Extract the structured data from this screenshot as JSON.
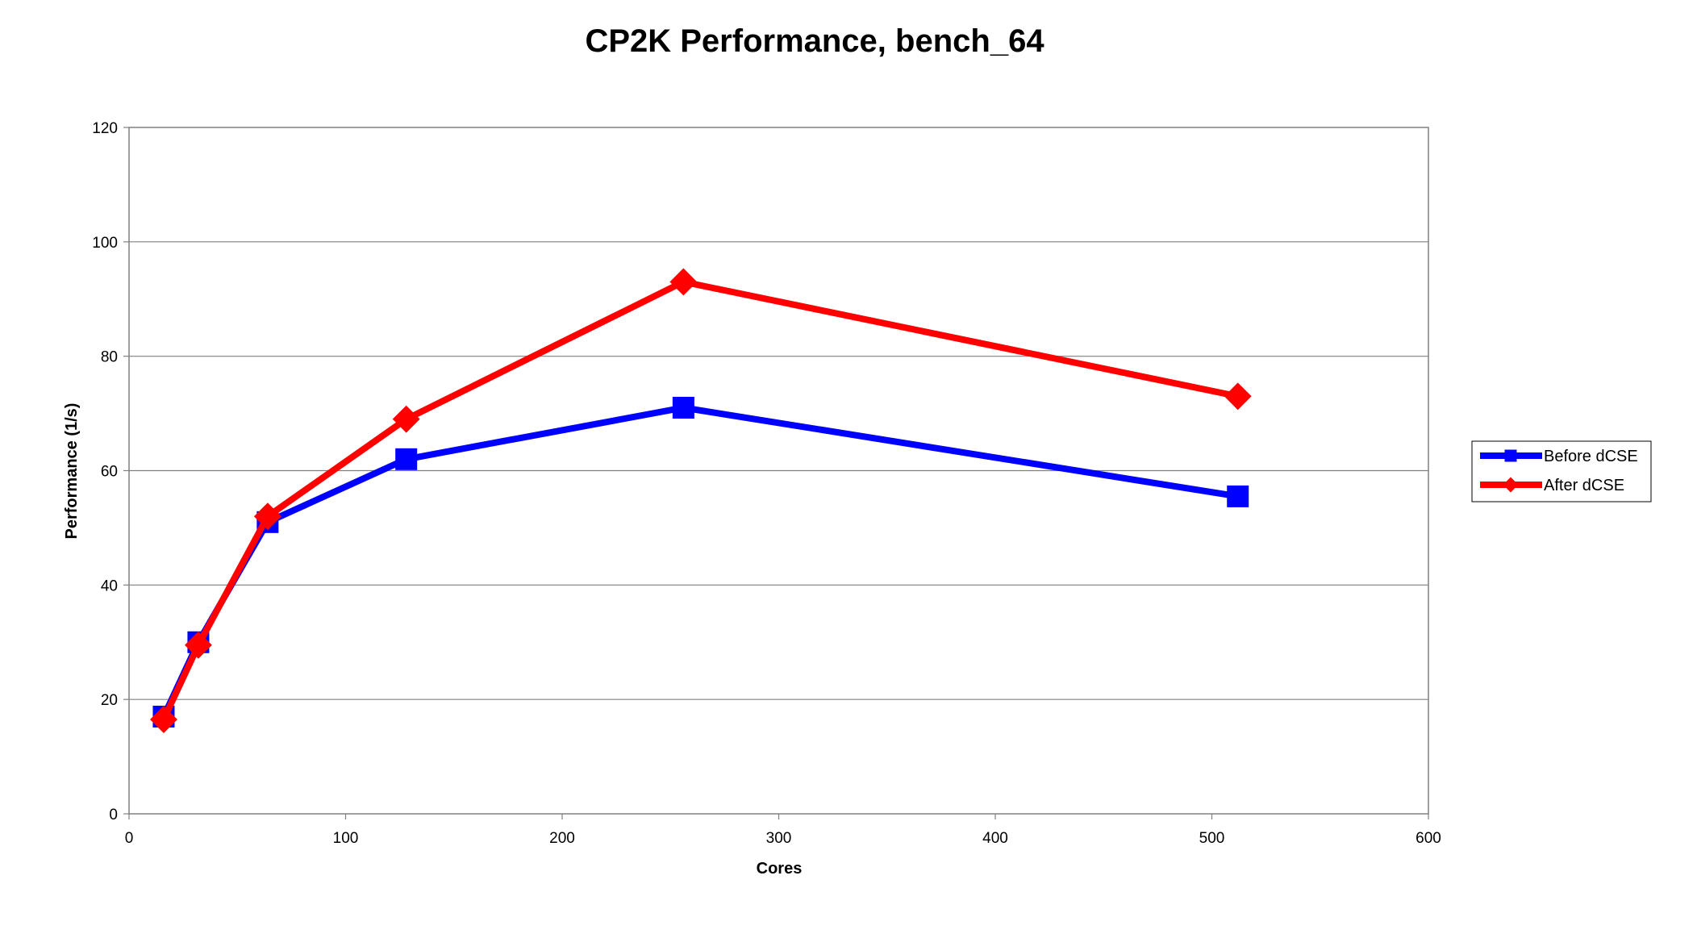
{
  "chart_data": {
    "type": "line",
    "title": "CP2K Performance, bench_64",
    "xlabel": "Cores",
    "ylabel": "Performance (1/s)",
    "xlim": [
      0,
      600
    ],
    "ylim": [
      0,
      120
    ],
    "xticks": [
      0,
      100,
      200,
      300,
      400,
      500,
      600
    ],
    "yticks": [
      0,
      20,
      40,
      60,
      80,
      100,
      120
    ],
    "grid": "horizontal",
    "legend_position": "right",
    "series": [
      {
        "name": "Before dCSE",
        "color": "#0000ff",
        "marker": "square",
        "x": [
          16,
          32,
          64,
          128,
          256,
          512
        ],
        "y": [
          17,
          30,
          51,
          62,
          71,
          55.5
        ]
      },
      {
        "name": "After dCSE",
        "color": "#ff0000",
        "marker": "diamond",
        "x": [
          16,
          32,
          64,
          128,
          256,
          512
        ],
        "y": [
          16.5,
          29.5,
          52,
          69,
          93,
          73
        ]
      }
    ]
  }
}
